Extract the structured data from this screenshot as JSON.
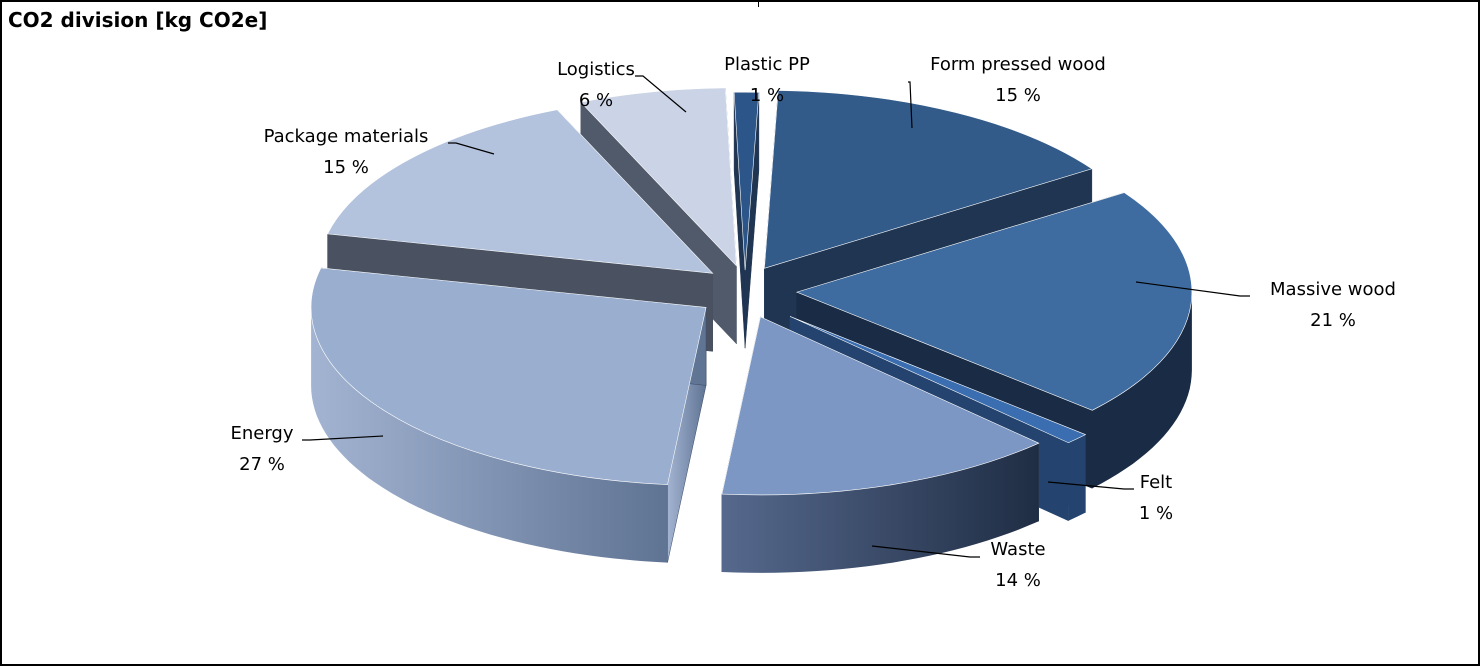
{
  "chart_data": {
    "type": "pie",
    "style": "3d-exploded",
    "title": "CO2 division [kg CO2e]",
    "categories": [
      "Form pressed wood",
      "Massive wood",
      "Felt",
      "Waste",
      "Energy",
      "Package materials",
      "Logistics",
      "Plastic PP"
    ],
    "values": [
      15,
      21,
      1,
      14,
      27,
      15,
      6,
      1
    ],
    "value_labels": [
      "15 %",
      "21 %",
      "1 %",
      "14 %",
      "27 %",
      "15 %",
      "6 %",
      "1 %"
    ],
    "unit": "%",
    "legend": "none",
    "colors": [
      "#335b8a",
      "#3f6ca0",
      "#3b6eb0",
      "#7c97c3",
      "#9aafd0",
      "#b3c2dd",
      "#cbd4e6",
      "#2c5689"
    ]
  }
}
